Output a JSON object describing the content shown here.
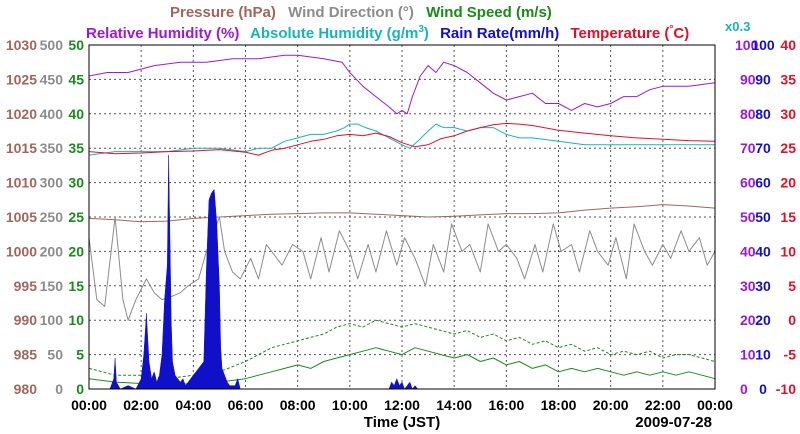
{
  "chart_data": {
    "type": "line",
    "legend": {
      "row1": [
        {
          "label": "Pressure (hPa)",
          "color": "#a0665e"
        },
        {
          "label": "Wind Direction (°)",
          "color": "#8c8c8c"
        },
        {
          "label": "Wind Speed (m/s)",
          "color": "#1a8a1a"
        }
      ],
      "row2": [
        {
          "label": "Relative Humidity (%)",
          "color": "#9a1ad6"
        },
        {
          "label": "Absolute Humidity (g/m",
          "sup": "3",
          "close": ")",
          "color": "#1ab4b4"
        },
        {
          "label": "Rain Rate(mm/h)",
          "color": "#1010c8"
        },
        {
          "label": "Temperature (",
          "deg": "°",
          "unit": "C)",
          "color": "#e0102a"
        }
      ],
      "scale_note": {
        "label": "x0.3",
        "color": "#1ab4b4"
      }
    },
    "x": {
      "range": [
        0,
        24
      ],
      "ticks": [
        0,
        2,
        4,
        6,
        8,
        10,
        12,
        14,
        16,
        18,
        20,
        22,
        24
      ],
      "tick_labels": [
        "00:00",
        "02:00",
        "04:00",
        "06:00",
        "08:00",
        "10:00",
        "12:00",
        "14:00",
        "16:00",
        "18:00",
        "20:00",
        "22:00",
        "00:00"
      ],
      "title": "Time (JST)",
      "date": "2009-07-28"
    },
    "axes": [
      {
        "id": "pressure",
        "name": "Pressure (hPa)",
        "range": [
          980,
          1030
        ],
        "labels": [
          "980",
          "985",
          "990",
          "995",
          "1000",
          "1005",
          "1010",
          "1015",
          "1020",
          "1025",
          "1030"
        ],
        "color": "#a0665e",
        "side": "left-outer"
      },
      {
        "id": "winddir",
        "name": "Wind Direction",
        "range": [
          0,
          500
        ],
        "labels": [
          "0",
          "50",
          "100",
          "150",
          "200",
          "250",
          "300",
          "350",
          "400",
          "450",
          "500"
        ],
        "color": "#8c8c8c",
        "side": "left-middle"
      },
      {
        "id": "windspeed",
        "name": "Wind Speed",
        "range": [
          0,
          50
        ],
        "labels": [
          "0",
          "5",
          "10",
          "15",
          "20",
          "25",
          "30",
          "35",
          "40",
          "45",
          "50"
        ],
        "color": "#1a8a1a",
        "side": "left-inner"
      },
      {
        "id": "humidity",
        "name": "Relative Humidity",
        "range": [
          0,
          100
        ],
        "labels": [
          "0",
          "10",
          "20",
          "30",
          "40",
          "50",
          "60",
          "70",
          "80",
          "90",
          "100"
        ],
        "color": "#9a1ad6",
        "side": "right-inner"
      },
      {
        "id": "rain",
        "name": "Rain Rate",
        "range": [
          0,
          100
        ],
        "labels": [
          "0",
          "10",
          "20",
          "30",
          "40",
          "50",
          "60",
          "70",
          "80",
          "90",
          "100"
        ],
        "color": "#1010c8",
        "side": "right-middle"
      },
      {
        "id": "temp",
        "name": "Temperature",
        "range": [
          -10,
          40
        ],
        "labels": [
          "-10",
          "-5",
          "0",
          "5",
          "10",
          "15",
          "20",
          "25",
          "30",
          "35",
          "40"
        ],
        "color": "#e0102a",
        "side": "right-outer"
      }
    ],
    "series": [
      {
        "name": "Relative Humidity",
        "axis": "humidity",
        "color": "#9a1ad6",
        "style": "solid",
        "x": [
          0,
          0.7,
          1.5,
          2.0,
          2.5,
          3.5,
          4.5,
          5.5,
          6.5,
          7.5,
          8.0,
          9.0,
          9.7,
          10.0,
          10.5,
          11.0,
          11.5,
          11.8,
          12.0,
          12.2,
          12.4,
          12.7,
          13.0,
          13.3,
          13.6,
          14.0,
          14.5,
          15.0,
          15.5,
          16.0,
          16.5,
          17.0,
          17.5,
          18.0,
          18.5,
          19.0,
          19.5,
          20.0,
          20.5,
          21.0,
          21.5,
          22.0,
          23.0,
          24
        ],
        "y": [
          91,
          92,
          92,
          93,
          94,
          95,
          95,
          96,
          96,
          97,
          97,
          96,
          95,
          92,
          88,
          85,
          82,
          80,
          81,
          80,
          85,
          91,
          94,
          92,
          95,
          94,
          92,
          89,
          86,
          84,
          85,
          86,
          83,
          83,
          81,
          83,
          82,
          83,
          85,
          85,
          87,
          88,
          88,
          89
        ]
      },
      {
        "name": "Absolute Humidity (x0.3)",
        "axis": "humidity",
        "color": "#1ab4b4",
        "style": "solid",
        "x": [
          0,
          1,
          2,
          3,
          4,
          5,
          6,
          6.5,
          7,
          7.5,
          8,
          8.5,
          9,
          9.5,
          9.8,
          10,
          10.3,
          10.6,
          11,
          11.5,
          12,
          12.3,
          12.6,
          13,
          13.3,
          13.6,
          14,
          14.5,
          15,
          15.5,
          16,
          16.5,
          17,
          18,
          19,
          20,
          21,
          22,
          23,
          24
        ],
        "y": [
          68,
          69,
          69,
          69,
          70,
          70,
          69,
          70,
          70,
          72,
          73,
          74,
          74,
          75,
          76,
          77,
          77,
          76,
          75,
          73,
          71,
          70,
          72,
          75,
          77,
          76,
          76,
          75,
          76,
          76,
          74,
          73,
          73,
          72,
          71,
          71,
          71,
          71,
          71,
          71
        ]
      },
      {
        "name": "Temperature",
        "axis": "temp",
        "color": "#e0102a",
        "style": "solid",
        "x": [
          0,
          1,
          2,
          3,
          4,
          5,
          6,
          6.5,
          7,
          7.5,
          8,
          8.5,
          9,
          9.5,
          10,
          10.5,
          11,
          11.5,
          12,
          12.5,
          13,
          13.5,
          14,
          14.5,
          15,
          15.5,
          16,
          16.5,
          17,
          18,
          19,
          20,
          21,
          22,
          23,
          24
        ],
        "y": [
          24.5,
          24.2,
          24.3,
          24.5,
          24.6,
          24.8,
          24.4,
          24,
          24.7,
          25,
          25.5,
          26,
          26.3,
          26.8,
          27,
          26.8,
          27.2,
          26.7,
          25.8,
          25.2,
          25.5,
          26.4,
          26.8,
          27.5,
          28,
          28.4,
          28.6,
          28.5,
          28.3,
          27.6,
          27.2,
          26.8,
          26.5,
          26.3,
          26.1,
          26
        ]
      },
      {
        "name": "Pressure",
        "axis": "pressure",
        "color": "#a0665e",
        "style": "solid",
        "x": [
          0,
          1,
          2,
          3,
          4,
          5,
          6,
          7,
          8,
          9,
          10,
          11,
          12,
          13,
          14,
          15,
          16,
          17,
          18,
          19,
          20,
          21,
          22,
          23,
          24
        ],
        "y": [
          1004.8,
          1004.6,
          1004.3,
          1004.4,
          1004.8,
          1005.0,
          1005.2,
          1005.4,
          1005.5,
          1005.6,
          1005.6,
          1005.4,
          1005.2,
          1005.0,
          1005.1,
          1005.3,
          1005.5,
          1005.5,
          1005.6,
          1006.0,
          1006.3,
          1006.5,
          1006.8,
          1006.6,
          1006.3
        ]
      },
      {
        "name": "Wind Direction",
        "axis": "winddir",
        "color": "#8c8c8c",
        "style": "solid",
        "x": [
          0,
          0.3,
          0.6,
          1.0,
          1.3,
          1.5,
          1.8,
          2.2,
          2.5,
          2.8,
          3.2,
          3.5,
          3.8,
          4.2,
          4.5,
          4.8,
          5.0,
          5.2,
          5.5,
          5.8,
          6.2,
          6.5,
          6.8,
          7.0,
          7.4,
          7.8,
          8.2,
          8.5,
          8.9,
          9.2,
          9.6,
          10.0,
          10.3,
          10.7,
          11.0,
          11.4,
          11.8,
          12.1,
          12.5,
          12.9,
          13.2,
          13.6,
          13.9,
          14.3,
          14.6,
          15.0,
          15.3,
          15.7,
          16.0,
          16.4,
          16.7,
          17.1,
          17.4,
          17.8,
          18.1,
          18.5,
          18.8,
          19.2,
          19.5,
          19.9,
          20.2,
          20.6,
          20.9,
          21.3,
          21.6,
          22.0,
          22.3,
          22.7,
          23.0,
          23.4,
          23.7,
          24
        ],
        "y": [
          220,
          130,
          120,
          250,
          130,
          100,
          130,
          160,
          140,
          130,
          135,
          140,
          150,
          160,
          200,
          230,
          250,
          200,
          170,
          160,
          190,
          160,
          210,
          200,
          180,
          210,
          200,
          160,
          220,
          170,
          230,
          200,
          160,
          210,
          170,
          230,
          180,
          220,
          190,
          150,
          210,
          170,
          240,
          200,
          210,
          170,
          240,
          200,
          210,
          190,
          160,
          210,
          170,
          240,
          200,
          210,
          170,
          230,
          200,
          180,
          220,
          160,
          240,
          200,
          180,
          210,
          190,
          230,
          200,
          220,
          180,
          200
        ]
      },
      {
        "name": "Wind Speed (mean)",
        "axis": "windspeed",
        "color": "#1a8a1a",
        "style": "solid",
        "x": [
          0,
          1,
          2,
          3,
          4,
          5,
          6,
          6.5,
          7,
          7.5,
          8,
          8.5,
          9,
          9.5,
          10,
          10.5,
          11,
          11.5,
          12,
          12.5,
          13,
          13.5,
          14,
          14.5,
          15,
          15.5,
          16,
          16.5,
          17,
          17.5,
          18,
          18.5,
          19,
          19.5,
          20,
          20.5,
          21,
          21.5,
          22,
          22.5,
          23,
          23.5,
          24
        ],
        "y": [
          1.5,
          1.0,
          0.8,
          0.6,
          0.8,
          1.0,
          1.5,
          2.0,
          2.5,
          3.0,
          3.5,
          3.0,
          4.0,
          4.5,
          5.0,
          5.5,
          6.0,
          5.5,
          5.0,
          6.0,
          5.5,
          5.0,
          4.5,
          5.0,
          4.0,
          4.5,
          3.5,
          4.0,
          3.0,
          3.5,
          2.5,
          3.0,
          2.5,
          3.0,
          2.5,
          2.0,
          2.5,
          2.0,
          2.5,
          2.0,
          2.5,
          2.0,
          1.5
        ]
      },
      {
        "name": "Wind Speed (max)",
        "axis": "windspeed",
        "color": "#1a8a1a",
        "style": "dashed",
        "x": [
          0,
          1,
          2,
          3,
          4,
          5,
          6,
          6.5,
          7,
          7.5,
          8,
          8.5,
          9,
          9.5,
          10,
          10.5,
          11,
          11.5,
          12,
          12.5,
          13,
          13.5,
          14,
          14.5,
          15,
          15.5,
          16,
          16.5,
          17,
          17.5,
          18,
          18.5,
          19,
          19.5,
          20,
          20.5,
          21,
          21.5,
          22,
          22.5,
          23,
          23.5,
          24
        ],
        "y": [
          3,
          2,
          2,
          1.5,
          2,
          2.5,
          4,
          5,
          6,
          6.5,
          7,
          7.5,
          8,
          9,
          9.5,
          9,
          10,
          9.5,
          9,
          9.5,
          9,
          8.5,
          8,
          8.5,
          7.5,
          8,
          7,
          7.5,
          6.5,
          7,
          6,
          6.5,
          5.5,
          6,
          5,
          5.5,
          5,
          5.5,
          4.5,
          5,
          5,
          4.5,
          4
        ]
      },
      {
        "name": "Rain Rate",
        "axis": "rain",
        "color": "#1010c8",
        "style": "area",
        "x": [
          0,
          0.8,
          0.95,
          1.0,
          1.05,
          1.2,
          1.5,
          1.8,
          2.0,
          2.1,
          2.2,
          2.3,
          2.4,
          2.5,
          2.6,
          2.7,
          2.8,
          2.9,
          3.0,
          3.05,
          3.1,
          3.15,
          3.2,
          3.3,
          3.4,
          3.5,
          3.6,
          3.7,
          3.8,
          3.9,
          4.0,
          4.2,
          4.4,
          4.5,
          4.6,
          4.7,
          4.8,
          4.9,
          5.0,
          5.05,
          5.1,
          5.2,
          5.3,
          5.4,
          5.5,
          5.6,
          5.7,
          5.8,
          6.0,
          11.5,
          11.6,
          11.7,
          11.8,
          11.9,
          12.0,
          12.1,
          12.2,
          12.3,
          12.4,
          12.5,
          12.6,
          24
        ],
        "y": [
          0,
          0,
          3,
          9,
          2,
          0,
          1,
          0,
          3,
          10,
          22,
          8,
          3,
          5,
          2,
          4,
          10,
          26,
          36,
          68,
          45,
          20,
          8,
          4,
          3,
          2,
          3,
          1,
          2,
          3,
          4,
          6,
          8,
          35,
          55,
          57,
          58,
          48,
          30,
          12,
          6,
          4,
          2,
          1,
          1,
          1,
          3,
          0,
          0,
          0,
          2,
          1,
          3,
          1,
          2,
          0,
          1,
          2,
          0,
          1,
          0,
          0
        ]
      }
    ]
  }
}
